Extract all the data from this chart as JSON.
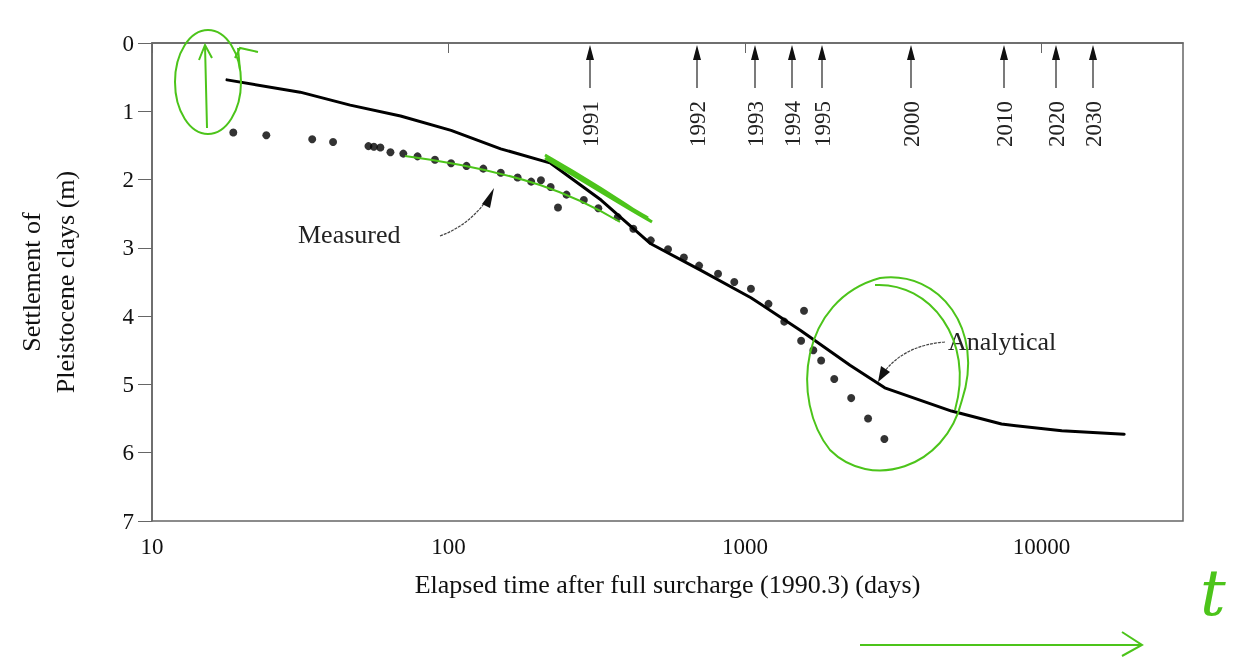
{
  "chart_data": {
    "type": "line",
    "xlabel": "Elapsed time after full surcharge (1990.3) (days)",
    "ylabel": "Settlement of Pleistocene clays (m)",
    "log": "x",
    "xlim": [
      10,
      30000
    ],
    "xticks": [
      10,
      100,
      1000,
      10000
    ],
    "ylim": [
      7,
      0
    ],
    "yticks": [
      0,
      1,
      2,
      3,
      4,
      5,
      6,
      7
    ],
    "grid": false,
    "series": [
      {
        "name": "Measured",
        "type": "scatter",
        "marker": "circle",
        "color": "#000000",
        "x": [
          18.8,
          24.3,
          34.7,
          40.8,
          53.7,
          56,
          58.9,
          63.7,
          70.4,
          78.6,
          90,
          102,
          115,
          131,
          150,
          171,
          190,
          205,
          221,
          234,
          250,
          286,
          320,
          372,
          420,
          481,
          550,
          622,
          700,
          811,
          920,
          1047,
          1200,
          1356,
          1546,
          1581,
          1700,
          1806,
          2000,
          2281,
          2600,
          2951
        ],
        "values": [
          1.31,
          1.35,
          1.41,
          1.45,
          1.51,
          1.52,
          1.53,
          1.6,
          1.62,
          1.66,
          1.71,
          1.76,
          1.8,
          1.84,
          1.9,
          1.97,
          2.03,
          2.01,
          2.11,
          2.41,
          2.22,
          2.3,
          2.42,
          2.55,
          2.72,
          2.89,
          3.02,
          3.14,
          3.26,
          3.38,
          3.5,
          3.6,
          3.82,
          4.08,
          4.36,
          3.92,
          4.5,
          4.65,
          4.92,
          5.2,
          5.5,
          5.8
        ]
      },
      {
        "name": "Analytical",
        "marker": "none",
        "line_style": "solid",
        "color": "#000000",
        "x": [
          17.9,
          31.6,
          46.6,
          68.9,
          102,
          150,
          221,
          327,
          481,
          710,
          1047,
          1540,
          2260,
          2960,
          4970,
          7330,
          11700,
          19000
        ],
        "values": [
          0.54,
          0.72,
          0.91,
          1.07,
          1.28,
          1.55,
          1.76,
          2.3,
          2.94,
          3.33,
          3.73,
          4.21,
          4.72,
          5.05,
          5.39,
          5.58,
          5.68,
          5.73
        ]
      }
    ],
    "annotations": [
      "1991",
      "1992",
      "1993",
      "1994",
      "1995",
      "2000",
      "2010",
      "2020",
      "2030",
      "t"
    ]
  }
}
